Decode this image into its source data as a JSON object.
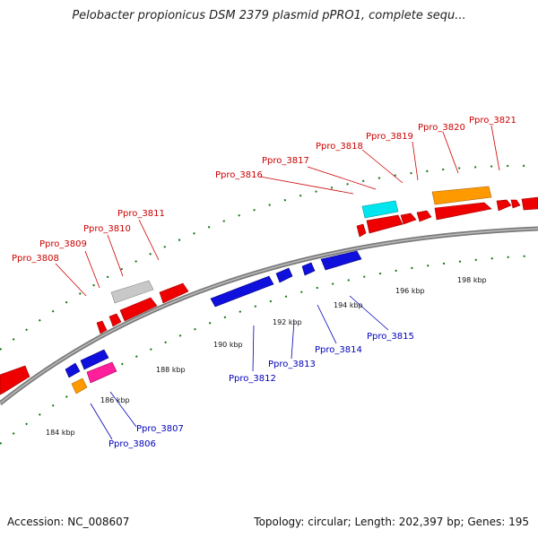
{
  "title": "Pelobacter propionicus DSM 2379 plasmid pPRO1, complete sequ...",
  "footer": {
    "accession": "Accession: NC_008607",
    "summary": "Topology: circular; Length: 202,397 bp; Genes: 195"
  },
  "kbp_labels": [
    "184 kbp",
    "186 kbp",
    "188 kbp",
    "190 kbp",
    "192 kbp",
    "194 kbp",
    "196 kbp",
    "198 kbp"
  ],
  "colors": {
    "forward_gene": "#ee0000",
    "reverse_gene": "#1010dd",
    "highlight_cyan": "#00e5ee",
    "highlight_orange": "#ff9900",
    "highlight_gray": "#c8c8c8",
    "highlight_pink": "#ff1f9a",
    "backbone": "#888888",
    "tick": "#117711"
  },
  "forward_labels": [
    "Ppro_3808",
    "Ppro_3809",
    "Ppro_3810",
    "Ppro_3811",
    "Ppro_3816",
    "Ppro_3817",
    "Ppro_3818",
    "Ppro_3819",
    "Ppro_3820",
    "Ppro_3821"
  ],
  "reverse_labels": [
    "Ppro_3806",
    "Ppro_3807",
    "Ppro_3812",
    "Ppro_3813",
    "Ppro_3814",
    "Ppro_3815"
  ]
}
